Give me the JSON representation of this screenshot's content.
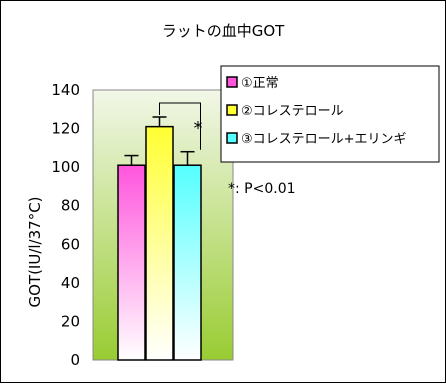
{
  "chart_data": {
    "type": "bar",
    "title": "ラットの血中GOT",
    "ylabel": "GOT(IU/l/37°C)",
    "xlabel": "",
    "ylim": [
      0,
      140
    ],
    "yticks": [
      "0",
      "20",
      "40",
      "60",
      "80",
      "100",
      "120",
      "140"
    ],
    "categories": [
      "①正常",
      "②コレステロール",
      "③コレステロール+エリンギ"
    ],
    "values": [
      101,
      121,
      101
    ],
    "errors": [
      5,
      5,
      7
    ],
    "legend": {
      "position": "top-right",
      "entries": [
        "①正常",
        "②コレステロール",
        "③コレステロール+エリンギ"
      ]
    },
    "annotation": {
      "significance_mark": "*",
      "footnote": "*: P<0.01"
    },
    "colors": {
      "normal": "#ff55dd",
      "cholesterol": "#ffff33",
      "cholesterol_eringi": "#55ffff",
      "plot_area_top": "#f2f7e8",
      "plot_area_bottom": "#99cc33"
    }
  }
}
